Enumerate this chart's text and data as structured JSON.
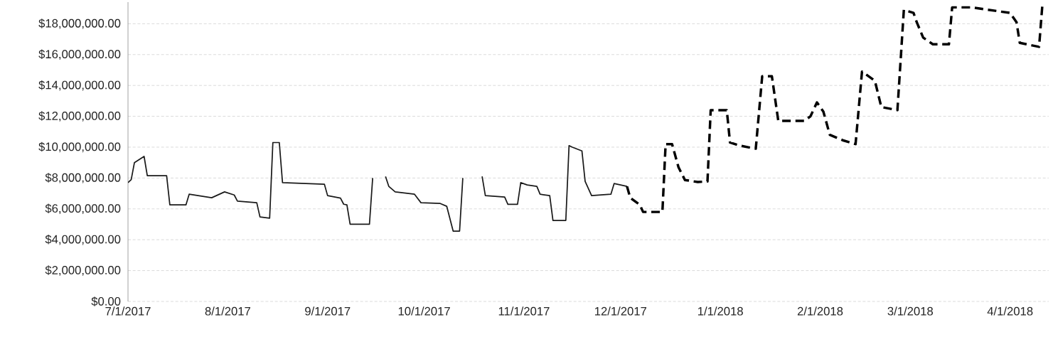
{
  "chart_data": {
    "type": "line",
    "xlim": [
      "2017-07-01",
      "2018-04-13"
    ],
    "xticks": [
      {
        "value": "2017-07-01",
        "label": "7/1/2017"
      },
      {
        "value": "2017-08-01",
        "label": "8/1/2017"
      },
      {
        "value": "2017-09-01",
        "label": "9/1/2017"
      },
      {
        "value": "2017-10-01",
        "label": "10/1/2017"
      },
      {
        "value": "2017-11-01",
        "label": "11/1/2017"
      },
      {
        "value": "2017-12-01",
        "label": "12/1/2017"
      },
      {
        "value": "2018-01-01",
        "label": "1/1/2018"
      },
      {
        "value": "2018-02-01",
        "label": "2/1/2018"
      },
      {
        "value": "2018-03-01",
        "label": "3/1/2018"
      },
      {
        "value": "2018-04-01",
        "label": "4/1/2018"
      }
    ],
    "ylim": [
      0,
      19400000
    ],
    "yticks": [
      {
        "value": 0,
        "label": "$0.00"
      },
      {
        "value": 2000000,
        "label": "$2,000,000.00"
      },
      {
        "value": 4000000,
        "label": "$4,000,000.00"
      },
      {
        "value": 6000000,
        "label": "$6,000,000.00"
      },
      {
        "value": 8000000,
        "label": "$8,000,000.00"
      },
      {
        "value": 10000000,
        "label": "$10,000,000.00"
      },
      {
        "value": 12000000,
        "label": "$12,000,000.00"
      },
      {
        "value": 14000000,
        "label": "$14,000,000.00"
      },
      {
        "value": 16000000,
        "label": "$16,000,000.00"
      },
      {
        "value": 18000000,
        "label": "$18,000,000.00"
      }
    ],
    "grid": "y",
    "legend": false,
    "marker": "none",
    "series": [
      {
        "color": "#1a1a1a",
        "line_style": "solid",
        "x": [
          "2017-07-01",
          "2017-07-02",
          "2017-07-03",
          "2017-07-06",
          "2017-07-07",
          "2017-07-13",
          "2017-07-14",
          "2017-07-19",
          "2017-07-20",
          "2017-07-27",
          "2017-07-31",
          "2017-08-03",
          "2017-08-04",
          "2017-08-10",
          "2017-08-11",
          "2017-08-14",
          "2017-08-15",
          "2017-08-17",
          "2017-08-18",
          "2017-08-31",
          "2017-09-01",
          "2017-09-05",
          "2017-09-06",
          "2017-09-07",
          "2017-09-08",
          "2017-09-14",
          "2017-09-15",
          "2017-09-17",
          "2017-09-19",
          "2017-09-20",
          "2017-09-22",
          "2017-09-28",
          "2017-09-30",
          "2017-10-06",
          "2017-10-08",
          "2017-10-10",
          "2017-10-12",
          "2017-10-13",
          "2017-10-16",
          "2017-10-19",
          "2017-10-20",
          "2017-10-26",
          "2017-10-27",
          "2017-10-30",
          "2017-10-31",
          "2017-11-02",
          "2017-11-05",
          "2017-11-06",
          "2017-11-09",
          "2017-11-10",
          "2017-11-14",
          "2017-11-15",
          "2017-11-16",
          "2017-11-19",
          "2017-11-20",
          "2017-11-22",
          "2017-11-28",
          "2017-11-29",
          "2017-12-03"
        ],
        "values": [
          7700000,
          7900000,
          9000000,
          9400000,
          8150000,
          8150000,
          6260000,
          6260000,
          6950000,
          6720000,
          7100000,
          6900000,
          6500000,
          6400000,
          5480000,
          5400000,
          10300000,
          10300000,
          7700000,
          7600000,
          6860000,
          6700000,
          6300000,
          6260000,
          5000000,
          5000000,
          8000000,
          null,
          8100000,
          7460000,
          7100000,
          6950000,
          6400000,
          6350000,
          6170000,
          4560000,
          4560000,
          8000000,
          null,
          8100000,
          6860000,
          6770000,
          6300000,
          6300000,
          7700000,
          7550000,
          7460000,
          6950000,
          6860000,
          5250000,
          5250000,
          10100000,
          10000000,
          9760000,
          7780000,
          6860000,
          6950000,
          7640000,
          7460000
        ]
      },
      {
        "color": "#000000",
        "line_style": "dashed",
        "x": [
          "2017-12-03",
          "2017-12-04",
          "2017-12-07",
          "2017-12-08",
          "2017-12-14",
          "2017-12-15",
          "2017-12-17",
          "2017-12-19",
          "2017-12-21",
          "2017-12-25",
          "2017-12-28",
          "2017-12-29",
          "2018-01-03",
          "2018-01-04",
          "2018-01-07",
          "2018-01-12",
          "2018-01-14",
          "2018-01-17",
          "2018-01-19",
          "2018-01-27",
          "2018-01-29",
          "2018-01-31",
          "2018-02-02",
          "2018-02-04",
          "2018-02-08",
          "2018-02-12",
          "2018-02-14",
          "2018-02-18",
          "2018-02-20",
          "2018-02-25",
          "2018-02-27",
          "2018-03-02",
          "2018-03-03",
          "2018-03-05",
          "2018-03-08",
          "2018-03-13",
          "2018-03-14",
          "2018-03-20",
          "2018-04-01",
          "2018-04-03",
          "2018-04-04",
          "2018-04-10",
          "2018-04-11"
        ],
        "values": [
          7460000,
          6720000,
          6260000,
          5800000,
          5800000,
          10200000,
          10200000,
          8700000,
          7870000,
          7740000,
          7780000,
          12400000,
          12400000,
          10300000,
          10100000,
          9900000,
          14600000,
          14600000,
          11700000,
          11700000,
          12000000,
          12900000,
          12300000,
          10800000,
          10450000,
          10200000,
          14900000,
          14300000,
          12600000,
          12400000,
          18900000,
          18700000,
          18100000,
          17100000,
          16670000,
          16670000,
          19060000,
          19060000,
          18700000,
          18100000,
          16760000,
          16500000,
          19150000
        ]
      }
    ]
  }
}
